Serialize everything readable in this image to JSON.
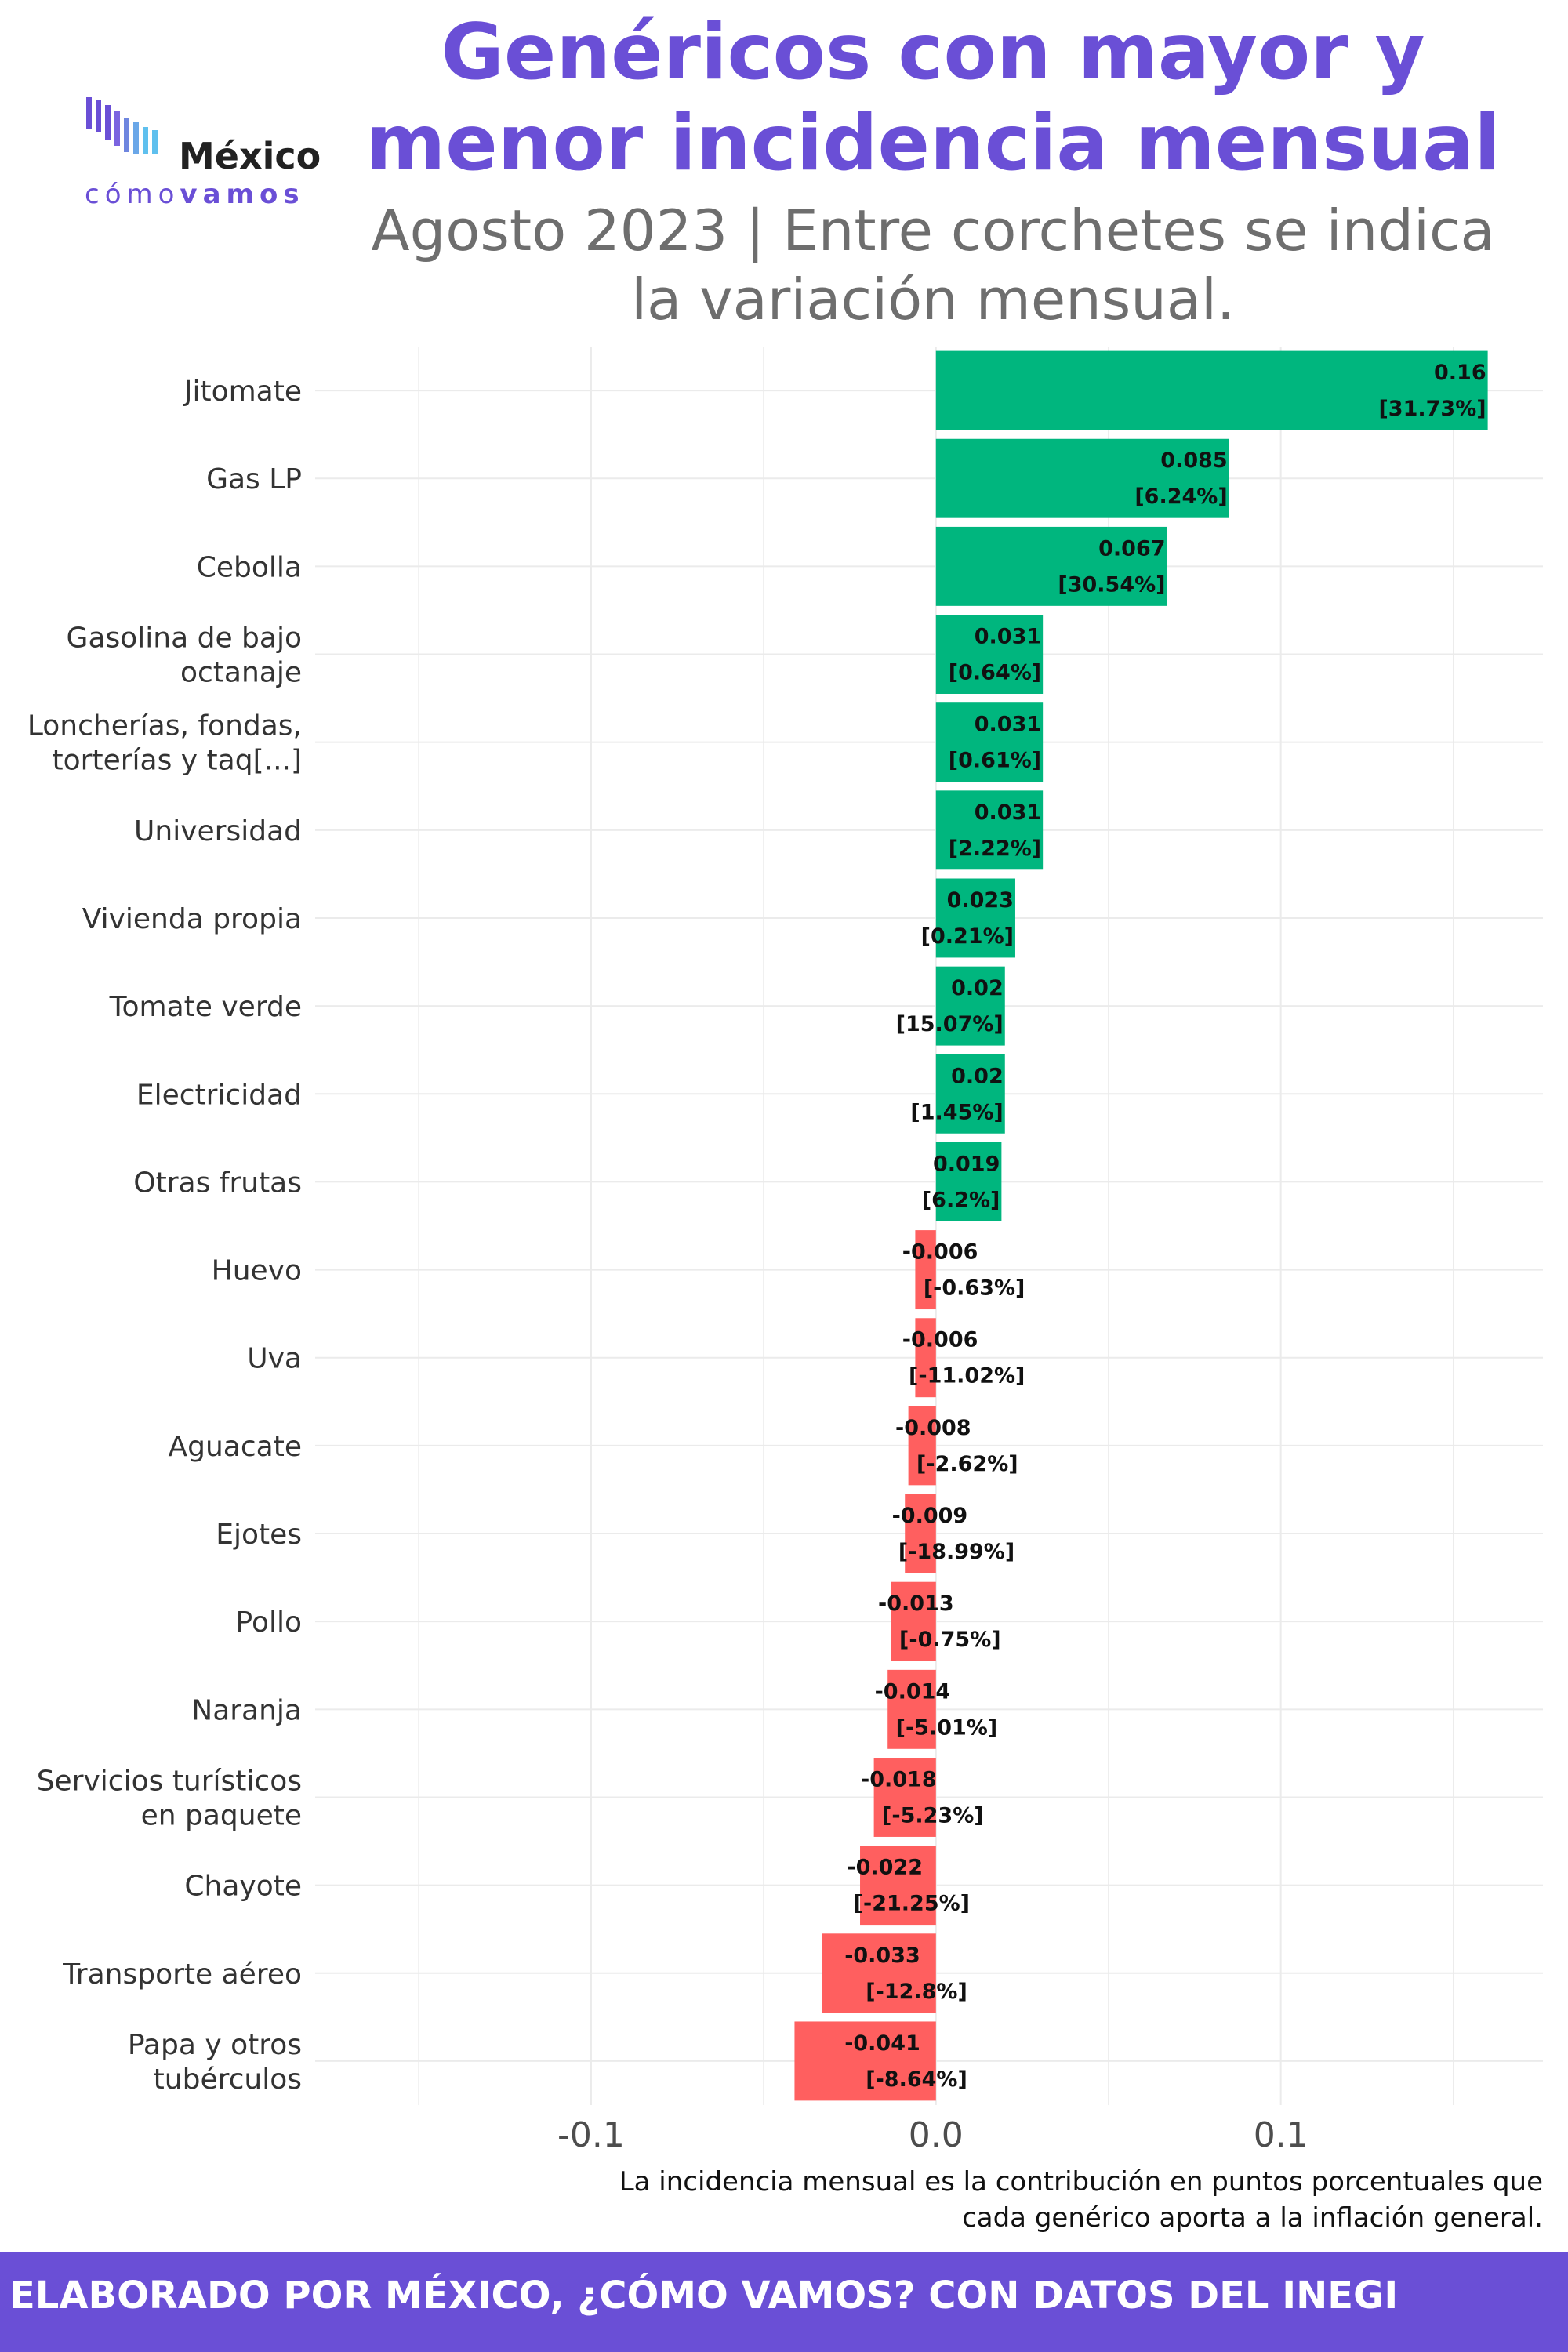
{
  "header": {
    "title_line1": "Genéricos con mayor y",
    "title_line2": "menor incidencia mensual",
    "subtitle_line1": "Agosto 2023 | Entre corchetes se indica",
    "subtitle_line2": "la variación mensual.",
    "logo_word": "México",
    "logo_sub_a": "cómo",
    "logo_sub_b": "vamos"
  },
  "note": {
    "line1": "La incidencia mensual es la contribución en puntos porcentuales que",
    "line2": "cada genérico aporta a la inflación general."
  },
  "footer": {
    "text": "ELABORADO POR MÉXICO, ¿CÓMO VAMOS? CON DATOS DEL INEGI"
  },
  "colors": {
    "positive": "#00b67e",
    "negative": "#ff5f5f",
    "accent": "#6a4fd6"
  },
  "chart_data": {
    "type": "bar",
    "orientation": "horizontal",
    "title": "Genéricos con mayor y menor incidencia mensual",
    "xlabel": "",
    "ylabel": "",
    "xlim": [
      -0.18,
      0.176
    ],
    "xticks": [
      -0.1,
      0.0,
      0.1
    ],
    "xtick_labels": [
      "-0.1",
      "0.0",
      "0.1"
    ],
    "grid": true,
    "categories": [
      [
        "Jitomate"
      ],
      [
        "Gas LP"
      ],
      [
        "Cebolla"
      ],
      [
        "Gasolina de bajo",
        "octanaje"
      ],
      [
        "Loncherías, fondas,",
        "torterías y taq[...]"
      ],
      [
        "Universidad"
      ],
      [
        "Vivienda propia"
      ],
      [
        "Tomate verde"
      ],
      [
        "Electricidad"
      ],
      [
        "Otras frutas"
      ],
      [
        "Huevo"
      ],
      [
        "Uva"
      ],
      [
        "Aguacate"
      ],
      [
        "Ejotes"
      ],
      [
        "Pollo"
      ],
      [
        "Naranja"
      ],
      [
        "Servicios turísticos",
        "en paquete"
      ],
      [
        "Chayote"
      ],
      [
        "Transporte aéreo"
      ],
      [
        "Papa y otros",
        "tubérculos"
      ]
    ],
    "values": [
      0.16,
      0.085,
      0.067,
      0.031,
      0.031,
      0.031,
      0.023,
      0.02,
      0.02,
      0.019,
      -0.006,
      -0.006,
      -0.008,
      -0.009,
      -0.013,
      -0.014,
      -0.018,
      -0.022,
      -0.033,
      -0.041
    ],
    "value_labels": [
      "0.16",
      "0.085",
      "0.067",
      "0.031",
      "0.031",
      "0.031",
      "0.023",
      "0.02",
      "0.02",
      "0.019",
      "-0.006",
      "-0.006",
      "-0.008",
      "-0.009",
      "-0.013",
      "-0.014",
      "-0.018",
      "-0.022",
      "-0.033",
      "-0.041"
    ],
    "variation_labels": [
      "[31.73%]",
      "[6.24%]",
      "[30.54%]",
      "[0.64%]",
      "[0.61%]",
      "[2.22%]",
      "[0.21%]",
      "[15.07%]",
      "[1.45%]",
      "[6.2%]",
      "[-0.63%]",
      "[-11.02%]",
      "[-2.62%]",
      "[-18.99%]",
      "[-0.75%]",
      "[-5.01%]",
      "[-5.23%]",
      "[-21.25%]",
      "[-12.8%]",
      "[-8.64%]"
    ]
  }
}
